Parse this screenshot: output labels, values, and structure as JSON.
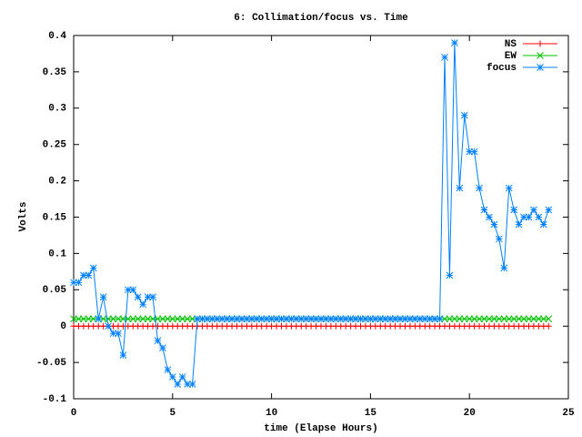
{
  "chart_data": {
    "type": "line",
    "title": "6: Collimation/focus vs. Time",
    "xlabel": "time (Elapse Hours)",
    "ylabel": "Volts",
    "x": [
      0,
      0.25,
      0.5,
      0.75,
      1,
      1.25,
      1.5,
      1.75,
      2,
      2.25,
      2.5,
      2.75,
      3,
      3.25,
      3.5,
      3.75,
      4,
      4.25,
      4.5,
      4.75,
      5,
      5.25,
      5.5,
      5.75,
      6,
      6.25,
      6.5,
      6.75,
      7,
      7.25,
      7.5,
      7.75,
      8,
      8.25,
      8.5,
      8.75,
      9,
      9.25,
      9.5,
      9.75,
      10,
      10.25,
      10.5,
      10.75,
      11,
      11.25,
      11.5,
      11.75,
      12,
      12.25,
      12.5,
      12.75,
      13,
      13.25,
      13.5,
      13.75,
      14,
      14.25,
      14.5,
      14.75,
      15,
      15.25,
      15.5,
      15.75,
      16,
      16.25,
      16.5,
      16.75,
      17,
      17.25,
      17.5,
      17.75,
      18,
      18.25,
      18.5,
      18.75,
      19,
      19.25,
      19.5,
      19.75,
      20,
      20.25,
      20.5,
      20.75,
      21,
      21.25,
      21.5,
      21.75,
      22,
      22.25,
      22.5,
      22.75,
      23,
      23.25,
      23.5,
      23.75,
      24
    ],
    "series": [
      {
        "name": "NS",
        "color": "#ff0000",
        "marker": "plus",
        "values": [
          0,
          0,
          0,
          0,
          0,
          0,
          0,
          0,
          0,
          0,
          0,
          0,
          0,
          0,
          0,
          0,
          0,
          0,
          0,
          0,
          0,
          0,
          0,
          0,
          0,
          0,
          0,
          0,
          0,
          0,
          0,
          0,
          0,
          0,
          0,
          0,
          0,
          0,
          0,
          0,
          0,
          0,
          0,
          0,
          0,
          0,
          0,
          0,
          0,
          0,
          0,
          0,
          0,
          0,
          0,
          0,
          0,
          0,
          0,
          0,
          0,
          0,
          0,
          0,
          0,
          0,
          0,
          0,
          0,
          0,
          0,
          0,
          0,
          0,
          0,
          0,
          0,
          0,
          0,
          0,
          0,
          0,
          0,
          0,
          0,
          0,
          0,
          0,
          0,
          0,
          0,
          0,
          0,
          0,
          0,
          0,
          0
        ]
      },
      {
        "name": "EW",
        "color": "#00c000",
        "marker": "cross",
        "values": [
          0.01,
          0.01,
          0.01,
          0.01,
          0.01,
          0.01,
          0.01,
          0.01,
          0.01,
          0.01,
          0.01,
          0.01,
          0.01,
          0.01,
          0.01,
          0.01,
          0.01,
          0.01,
          0.01,
          0.01,
          0.01,
          0.01,
          0.01,
          0.01,
          0.01,
          0.01,
          0.01,
          0.01,
          0.01,
          0.01,
          0.01,
          0.01,
          0.01,
          0.01,
          0.01,
          0.01,
          0.01,
          0.01,
          0.01,
          0.01,
          0.01,
          0.01,
          0.01,
          0.01,
          0.01,
          0.01,
          0.01,
          0.01,
          0.01,
          0.01,
          0.01,
          0.01,
          0.01,
          0.01,
          0.01,
          0.01,
          0.01,
          0.01,
          0.01,
          0.01,
          0.01,
          0.01,
          0.01,
          0.01,
          0.01,
          0.01,
          0.01,
          0.01,
          0.01,
          0.01,
          0.01,
          0.01,
          0.01,
          0.01,
          0.01,
          0.01,
          0.01,
          0.01,
          0.01,
          0.01,
          0.01,
          0.01,
          0.01,
          0.01,
          0.01,
          0.01,
          0.01,
          0.01,
          0.01,
          0.01,
          0.01,
          0.01,
          0.01,
          0.01,
          0.01,
          0.01,
          0.01
        ]
      },
      {
        "name": "focus",
        "color": "#0080ff",
        "marker": "star",
        "values": [
          0.06,
          0.06,
          0.07,
          0.07,
          0.08,
          0.01,
          0.04,
          0,
          -0.01,
          -0.01,
          -0.04,
          0.05,
          0.05,
          0.04,
          0.03,
          0.04,
          0.04,
          -0.02,
          -0.03,
          -0.06,
          -0.07,
          -0.08,
          -0.07,
          -0.08,
          -0.08,
          0.01,
          0.01,
          0.01,
          0.01,
          0.01,
          0.01,
          0.01,
          0.01,
          0.01,
          0.01,
          0.01,
          0.01,
          0.01,
          0.01,
          0.01,
          0.01,
          0.01,
          0.01,
          0.01,
          0.01,
          0.01,
          0.01,
          0.01,
          0.01,
          0.01,
          0.01,
          0.01,
          0.01,
          0.01,
          0.01,
          0.01,
          0.01,
          0.01,
          0.01,
          0.01,
          0.01,
          0.01,
          0.01,
          0.01,
          0.01,
          0.01,
          0.01,
          0.01,
          0.01,
          0.01,
          0.01,
          0.01,
          0.01,
          0.01,
          0.01,
          0.37,
          0.07,
          0.39,
          0.19,
          0.29,
          0.24,
          0.24,
          0.19,
          0.16,
          0.15,
          0.14,
          0.12,
          0.08,
          0.19,
          0.16,
          0.14,
          0.15,
          0.15,
          0.16,
          0.15,
          0.14,
          0.16
        ]
      }
    ],
    "xlim": [
      0,
      25
    ],
    "xticks": [
      0,
      5,
      10,
      15,
      20,
      25
    ],
    "ylim": [
      -0.1,
      0.4
    ],
    "yticks": [
      -0.1,
      -0.05,
      0,
      0.05,
      0.1,
      0.15,
      0.2,
      0.25,
      0.3,
      0.35,
      0.4
    ],
    "legend": "top-right",
    "grid": false
  }
}
